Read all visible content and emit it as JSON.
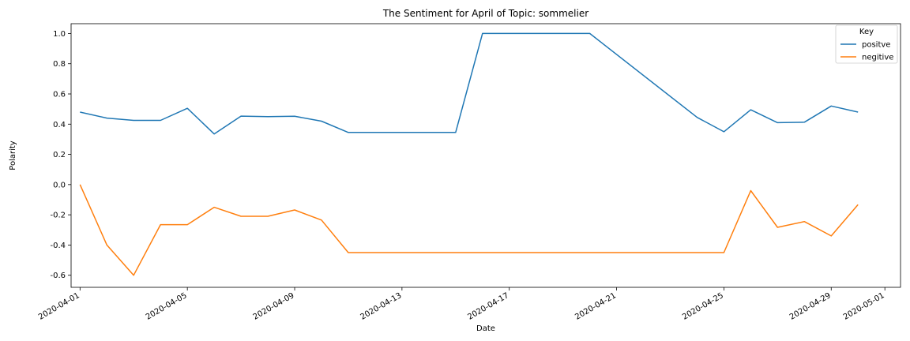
{
  "chart_data": {
    "type": "line",
    "title": "The Sentiment for April of Topic: sommelier",
    "xlabel": "Date",
    "ylabel": "Polarity",
    "x": [
      "2020-04-01",
      "2020-04-02",
      "2020-04-03",
      "2020-04-04",
      "2020-04-05",
      "2020-04-06",
      "2020-04-07",
      "2020-04-08",
      "2020-04-09",
      "2020-04-10",
      "2020-04-11",
      "2020-04-15",
      "2020-04-16",
      "2020-04-20",
      "2020-04-24",
      "2020-04-25",
      "2020-04-26",
      "2020-04-27",
      "2020-04-28",
      "2020-04-29",
      "2020-04-30"
    ],
    "series": [
      {
        "name": "positve",
        "color": "#1f77b4",
        "points": [
          [
            "2020-04-01",
            0.48
          ],
          [
            "2020-04-02",
            0.44
          ],
          [
            "2020-04-03",
            0.425
          ],
          [
            "2020-04-04",
            0.425
          ],
          [
            "2020-04-05",
            0.505
          ],
          [
            "2020-04-06",
            0.335
          ],
          [
            "2020-04-07",
            0.453
          ],
          [
            "2020-04-08",
            0.45
          ],
          [
            "2020-04-09",
            0.452
          ],
          [
            "2020-04-10",
            0.42
          ],
          [
            "2020-04-11",
            0.345
          ],
          [
            "2020-04-15",
            0.345
          ],
          [
            "2020-04-16",
            1.0
          ],
          [
            "2020-04-20",
            1.0
          ],
          [
            "2020-04-24",
            0.445
          ],
          [
            "2020-04-25",
            0.35
          ],
          [
            "2020-04-26",
            0.495
          ],
          [
            "2020-04-27",
            0.41
          ],
          [
            "2020-04-28",
            0.413
          ],
          [
            "2020-04-29",
            0.52
          ],
          [
            "2020-04-30",
            0.48
          ]
        ]
      },
      {
        "name": "negitive",
        "color": "#ff7f0e",
        "points": [
          [
            "2020-04-01",
            0.0
          ],
          [
            "2020-04-02",
            -0.4
          ],
          [
            "2020-04-03",
            -0.6
          ],
          [
            "2020-04-04",
            -0.265
          ],
          [
            "2020-04-05",
            -0.265
          ],
          [
            "2020-04-06",
            -0.15
          ],
          [
            "2020-04-07",
            -0.21
          ],
          [
            "2020-04-08",
            -0.21
          ],
          [
            "2020-04-09",
            -0.168
          ],
          [
            "2020-04-10",
            -0.235
          ],
          [
            "2020-04-11",
            -0.45
          ],
          [
            "2020-04-25",
            -0.45
          ],
          [
            "2020-04-26",
            -0.04
          ],
          [
            "2020-04-27",
            -0.283
          ],
          [
            "2020-04-28",
            -0.245
          ],
          [
            "2020-04-29",
            -0.34
          ],
          [
            "2020-04-30",
            -0.133
          ]
        ]
      }
    ],
    "xlim": [
      "2020-03-31T16:00",
      "2020-05-01T14:00"
    ],
    "ylim": [
      -0.68,
      1.065
    ],
    "xticks": [
      "2020-04-01",
      "2020-04-05",
      "2020-04-09",
      "2020-04-13",
      "2020-04-17",
      "2020-04-21",
      "2020-04-25",
      "2020-04-29",
      "2020-05-01"
    ],
    "yticks": [
      -0.6,
      -0.4,
      -0.2,
      0.0,
      0.2,
      0.4,
      0.6,
      0.8,
      1.0
    ],
    "grid": false,
    "legend": {
      "title": "Key",
      "placement": "top-right"
    }
  }
}
